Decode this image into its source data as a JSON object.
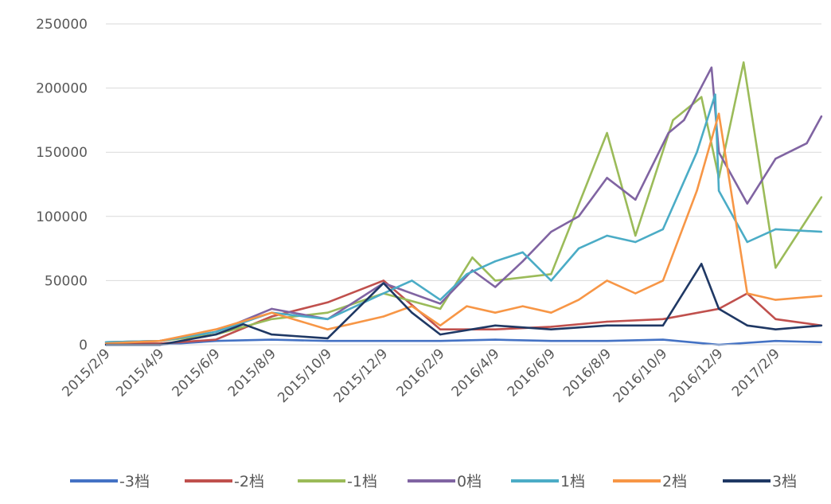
{
  "chart_data": {
    "type": "line",
    "title": "",
    "xlabel": "",
    "ylabel": "",
    "ylim": [
      0,
      250000
    ],
    "y_ticks": [
      "250000",
      "200000",
      "150000",
      "100000",
      "50000",
      "0"
    ],
    "x_tick_labels": [
      "2015/2/9",
      "2015/4/9",
      "2015/6/9",
      "2015/8/9",
      "2015/10/9",
      "2015/12/9",
      "2016/2/9",
      "2016/4/9",
      "2016/6/9",
      "2016/8/9",
      "2016/10/9",
      "2016/12/9",
      "2017/2/9"
    ],
    "x_range": [
      "2015/2/9",
      "2017/3/31"
    ],
    "grid": "horizontal",
    "legend_position": "bottom",
    "series": [
      {
        "name": "-3档",
        "color": "#4472c4",
        "points": [
          [
            "2015/2/9",
            0
          ],
          [
            "2015/4/9",
            0
          ],
          [
            "2015/6/9",
            3000
          ],
          [
            "2015/8/9",
            4000
          ],
          [
            "2015/10/9",
            3000
          ],
          [
            "2015/12/9",
            3000
          ],
          [
            "2016/2/9",
            3000
          ],
          [
            "2016/4/9",
            4000
          ],
          [
            "2016/6/9",
            3000
          ],
          [
            "2016/8/9",
            3000
          ],
          [
            "2016/10/9",
            4000
          ],
          [
            "2016/12/9",
            0
          ],
          [
            "2017/2/9",
            3000
          ],
          [
            "2017/3/31",
            2000
          ]
        ]
      },
      {
        "name": "-2档",
        "color": "#c0504d",
        "points": [
          [
            "2015/2/9",
            1000
          ],
          [
            "2015/4/9",
            1000
          ],
          [
            "2015/6/9",
            4000
          ],
          [
            "2015/8/9",
            22000
          ],
          [
            "2015/10/9",
            33000
          ],
          [
            "2015/12/9",
            50000
          ],
          [
            "2016/2/9",
            12000
          ],
          [
            "2016/4/9",
            12000
          ],
          [
            "2016/6/9",
            14000
          ],
          [
            "2016/8/9",
            18000
          ],
          [
            "2016/10/9",
            20000
          ],
          [
            "2016/12/9",
            28000
          ],
          [
            "2017/1/9",
            40000
          ],
          [
            "2017/2/9",
            20000
          ],
          [
            "2017/3/31",
            15000
          ]
        ]
      },
      {
        "name": "-1档",
        "color": "#9bbb59",
        "points": [
          [
            "2015/2/9",
            2000
          ],
          [
            "2015/4/9",
            3000
          ],
          [
            "2015/6/9",
            8000
          ],
          [
            "2015/8/9",
            20000
          ],
          [
            "2015/10/9",
            25000
          ],
          [
            "2015/12/9",
            40000
          ],
          [
            "2016/2/9",
            28000
          ],
          [
            "2016/3/15",
            68000
          ],
          [
            "2016/4/9",
            50000
          ],
          [
            "2016/6/9",
            55000
          ],
          [
            "2016/7/15",
            120000
          ],
          [
            "2016/8/9",
            165000
          ],
          [
            "2016/9/9",
            85000
          ],
          [
            "2016/10/20",
            175000
          ],
          [
            "2016/11/20",
            193000
          ],
          [
            "2016/12/9",
            130000
          ],
          [
            "2017/1/5",
            220000
          ],
          [
            "2017/2/9",
            60000
          ],
          [
            "2017/3/31",
            115000
          ]
        ]
      },
      {
        "name": "0档",
        "color": "#8064a2",
        "points": [
          [
            "2015/2/9",
            2000
          ],
          [
            "2015/4/9",
            3000
          ],
          [
            "2015/6/9",
            10000
          ],
          [
            "2015/8/9",
            28000
          ],
          [
            "2015/10/9",
            20000
          ],
          [
            "2015/12/9",
            48000
          ],
          [
            "2016/2/9",
            32000
          ],
          [
            "2016/3/15",
            58000
          ],
          [
            "2016/4/9",
            45000
          ],
          [
            "2016/5/9",
            65000
          ],
          [
            "2016/6/9",
            88000
          ],
          [
            "2016/7/9",
            100000
          ],
          [
            "2016/8/9",
            130000
          ],
          [
            "2016/9/9",
            113000
          ],
          [
            "2016/10/15",
            165000
          ],
          [
            "2016/11/1",
            175000
          ],
          [
            "2016/12/1",
            216000
          ],
          [
            "2016/12/9",
            150000
          ],
          [
            "2017/1/9",
            110000
          ],
          [
            "2017/2/9",
            145000
          ],
          [
            "2017/3/15",
            157000
          ],
          [
            "2017/3/31",
            178000
          ]
        ]
      },
      {
        "name": "1档",
        "color": "#4bacc6",
        "points": [
          [
            "2015/2/9",
            2000
          ],
          [
            "2015/4/9",
            3000
          ],
          [
            "2015/6/9",
            10000
          ],
          [
            "2015/8/9",
            25000
          ],
          [
            "2015/10/9",
            20000
          ],
          [
            "2015/12/9",
            40000
          ],
          [
            "2016/1/9",
            50000
          ],
          [
            "2016/2/9",
            35000
          ],
          [
            "2016/3/9",
            55000
          ],
          [
            "2016/4/9",
            65000
          ],
          [
            "2016/5/9",
            72000
          ],
          [
            "2016/6/9",
            50000
          ],
          [
            "2016/7/9",
            75000
          ],
          [
            "2016/8/9",
            85000
          ],
          [
            "2016/9/9",
            80000
          ],
          [
            "2016/10/9",
            90000
          ],
          [
            "2016/11/15",
            150000
          ],
          [
            "2016/12/5",
            195000
          ],
          [
            "2016/12/9",
            120000
          ],
          [
            "2017/1/9",
            80000
          ],
          [
            "2017/2/9",
            90000
          ],
          [
            "2017/3/31",
            88000
          ]
        ]
      },
      {
        "name": "2档",
        "color": "#f79646",
        "points": [
          [
            "2015/2/9",
            1000
          ],
          [
            "2015/4/9",
            3000
          ],
          [
            "2015/6/9",
            12000
          ],
          [
            "2015/8/9",
            25000
          ],
          [
            "2015/10/9",
            12000
          ],
          [
            "2015/12/9",
            22000
          ],
          [
            "2016/1/9",
            30000
          ],
          [
            "2016/2/9",
            15000
          ],
          [
            "2016/3/9",
            30000
          ],
          [
            "2016/4/9",
            25000
          ],
          [
            "2016/5/9",
            30000
          ],
          [
            "2016/6/9",
            25000
          ],
          [
            "2016/7/9",
            35000
          ],
          [
            "2016/8/9",
            50000
          ],
          [
            "2016/9/9",
            40000
          ],
          [
            "2016/10/9",
            50000
          ],
          [
            "2016/11/15",
            120000
          ],
          [
            "2016/12/9",
            180000
          ],
          [
            "2017/1/9",
            40000
          ],
          [
            "2017/2/9",
            35000
          ],
          [
            "2017/3/31",
            38000
          ]
        ]
      },
      {
        "name": "3档",
        "color": "#1f3864",
        "points": [
          [
            "2015/2/9",
            0
          ],
          [
            "2015/4/9",
            0
          ],
          [
            "2015/6/9",
            8000
          ],
          [
            "2015/7/9",
            16000
          ],
          [
            "2015/8/9",
            8000
          ],
          [
            "2015/10/9",
            5000
          ],
          [
            "2015/12/9",
            48000
          ],
          [
            "2016/1/9",
            25000
          ],
          [
            "2016/2/9",
            8000
          ],
          [
            "2016/4/9",
            15000
          ],
          [
            "2016/6/9",
            12000
          ],
          [
            "2016/8/9",
            15000
          ],
          [
            "2016/10/9",
            15000
          ],
          [
            "2016/11/20",
            63000
          ],
          [
            "2016/12/9",
            28000
          ],
          [
            "2017/1/9",
            15000
          ],
          [
            "2017/2/9",
            12000
          ],
          [
            "2017/3/31",
            15000
          ]
        ]
      }
    ]
  }
}
